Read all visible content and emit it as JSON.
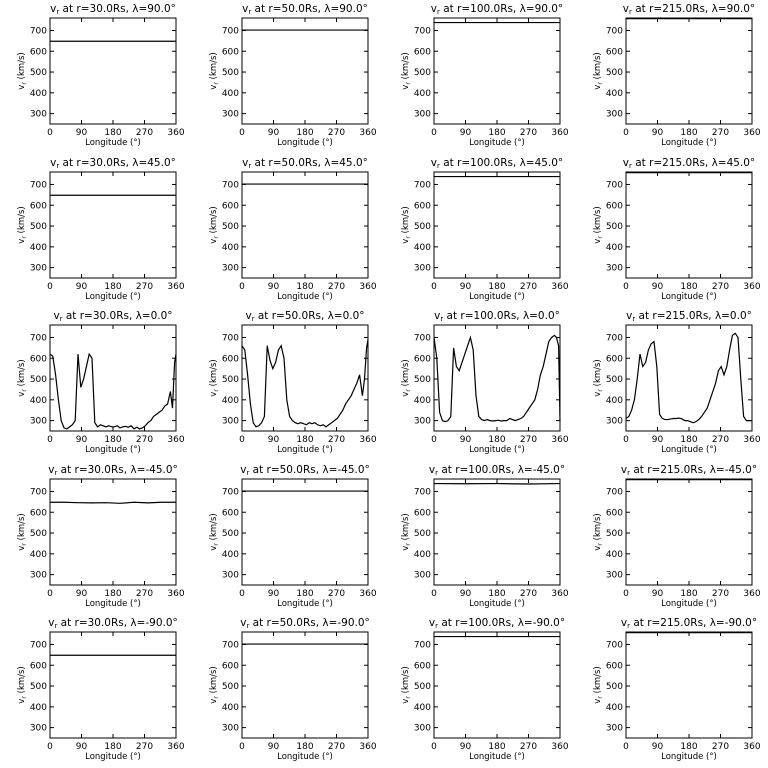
{
  "chart_data": [
    {
      "type": "line",
      "title": "v_r at r=30.0Rs, λ=90.0°",
      "radius": "30.0",
      "lat": "90.0",
      "xlabel": "Longitude (°)",
      "ylabel": "v_r (km/s)",
      "xlim": [
        0,
        360
      ],
      "ylim": [
        250,
        760
      ],
      "xticks": [
        0,
        90,
        180,
        270,
        360
      ],
      "yticks": [
        300,
        400,
        500,
        600,
        700
      ],
      "x": [
        0,
        360
      ],
      "y": [
        648,
        648
      ]
    },
    {
      "type": "line",
      "title": "v_r at r=50.0Rs, λ=90.0°",
      "radius": "50.0",
      "lat": "90.0",
      "xlabel": "Longitude (°)",
      "ylabel": "v_r (km/s)",
      "xlim": [
        0,
        360
      ],
      "ylim": [
        250,
        760
      ],
      "xticks": [
        0,
        90,
        180,
        270,
        360
      ],
      "yticks": [
        300,
        400,
        500,
        600,
        700
      ],
      "x": [
        0,
        360
      ],
      "y": [
        702,
        702
      ]
    },
    {
      "type": "line",
      "title": "v_r at r=100.0Rs, λ=90.0°",
      "radius": "100.0",
      "lat": "90.0",
      "xlabel": "Longitude (°)",
      "ylabel": "v_r (km/s)",
      "xlim": [
        0,
        360
      ],
      "ylim": [
        250,
        760
      ],
      "xticks": [
        0,
        90,
        180,
        270,
        360
      ],
      "yticks": [
        300,
        400,
        500,
        600,
        700
      ],
      "x": [
        0,
        360
      ],
      "y": [
        738,
        738
      ]
    },
    {
      "type": "line",
      "title": "v_r at r=215.0Rs, λ=90.0°",
      "radius": "215.0",
      "lat": "90.0",
      "xlabel": "Longitude (°)",
      "ylabel": "v_r (km/s)",
      "xlim": [
        0,
        360
      ],
      "ylim": [
        250,
        760
      ],
      "xticks": [
        0,
        90,
        180,
        270,
        360
      ],
      "yticks": [
        300,
        400,
        500,
        600,
        700
      ],
      "x": [
        0,
        360
      ],
      "y": [
        757,
        757
      ]
    },
    {
      "type": "line",
      "title": "v_r at r=30.0Rs, λ=45.0°",
      "radius": "30.0",
      "lat": "45.0",
      "xlabel": "Longitude (°)",
      "ylabel": "v_r (km/s)",
      "xlim": [
        0,
        360
      ],
      "ylim": [
        250,
        760
      ],
      "xticks": [
        0,
        90,
        180,
        270,
        360
      ],
      "yticks": [
        300,
        400,
        500,
        600,
        700
      ],
      "x": [
        0,
        360
      ],
      "y": [
        648,
        648
      ]
    },
    {
      "type": "line",
      "title": "v_r at r=50.0Rs, λ=45.0°",
      "radius": "50.0",
      "lat": "45.0",
      "xlabel": "Longitude (°)",
      "ylabel": "v_r (km/s)",
      "xlim": [
        0,
        360
      ],
      "ylim": [
        250,
        760
      ],
      "xticks": [
        0,
        90,
        180,
        270,
        360
      ],
      "yticks": [
        300,
        400,
        500,
        600,
        700
      ],
      "x": [
        0,
        360
      ],
      "y": [
        702,
        702
      ]
    },
    {
      "type": "line",
      "title": "v_r at r=100.0Rs, λ=45.0°",
      "radius": "100.0",
      "lat": "45.0",
      "xlabel": "Longitude (°)",
      "ylabel": "v_r (km/s)",
      "xlim": [
        0,
        360
      ],
      "ylim": [
        250,
        760
      ],
      "xticks": [
        0,
        90,
        180,
        270,
        360
      ],
      "yticks": [
        300,
        400,
        500,
        600,
        700
      ],
      "x": [
        0,
        360
      ],
      "y": [
        738,
        738
      ]
    },
    {
      "type": "line",
      "title": "v_r at r=215.0Rs, λ=45.0°",
      "radius": "215.0",
      "lat": "45.0",
      "xlabel": "Longitude (°)",
      "ylabel": "v_r (km/s)",
      "xlim": [
        0,
        360
      ],
      "ylim": [
        250,
        760
      ],
      "xticks": [
        0,
        90,
        180,
        270,
        360
      ],
      "yticks": [
        300,
        400,
        500,
        600,
        700
      ],
      "x": [
        0,
        360
      ],
      "y": [
        757,
        757
      ]
    },
    {
      "type": "line",
      "title": "v_r at r=30.0Rs, λ=0.0°",
      "radius": "30.0",
      "lat": "0.0",
      "xlabel": "Longitude (°)",
      "ylabel": "v_r (km/s)",
      "xlim": [
        0,
        360
      ],
      "ylim": [
        250,
        760
      ],
      "xticks": [
        0,
        90,
        180,
        270,
        360
      ],
      "yticks": [
        300,
        400,
        500,
        600,
        700
      ],
      "x": [
        0,
        8,
        16,
        24,
        32,
        40,
        48,
        56,
        64,
        72,
        80,
        88,
        96,
        104,
        112,
        120,
        128,
        136,
        144,
        152,
        160,
        168,
        176,
        184,
        192,
        200,
        208,
        216,
        224,
        232,
        240,
        248,
        256,
        264,
        272,
        280,
        288,
        296,
        304,
        312,
        320,
        328,
        336,
        344,
        350,
        356,
        360
      ],
      "y": [
        620,
        610,
        520,
        400,
        300,
        265,
        260,
        270,
        280,
        300,
        620,
        460,
        500,
        560,
        620,
        600,
        290,
        270,
        280,
        275,
        270,
        275,
        270,
        270,
        275,
        265,
        270,
        272,
        268,
        275,
        260,
        268,
        260,
        265,
        275,
        290,
        300,
        320,
        330,
        340,
        350,
        370,
        380,
        440,
        360,
        580,
        620
      ]
    },
    {
      "type": "line",
      "title": "v_r at r=50.0Rs, λ=0.0°",
      "radius": "50.0",
      "lat": "0.0",
      "xlabel": "Longitude (°)",
      "ylabel": "v_r (km/s)",
      "xlim": [
        0,
        360
      ],
      "ylim": [
        250,
        760
      ],
      "xticks": [
        0,
        90,
        180,
        270,
        360
      ],
      "yticks": [
        300,
        400,
        500,
        600,
        700
      ],
      "x": [
        0,
        8,
        16,
        24,
        32,
        40,
        48,
        56,
        64,
        72,
        80,
        88,
        96,
        104,
        112,
        120,
        128,
        136,
        144,
        152,
        160,
        168,
        176,
        184,
        192,
        200,
        208,
        216,
        224,
        232,
        240,
        248,
        256,
        264,
        272,
        280,
        288,
        296,
        304,
        312,
        320,
        328,
        336,
        344,
        350,
        356,
        360
      ],
      "y": [
        660,
        640,
        520,
        380,
        290,
        270,
        275,
        290,
        320,
        660,
        590,
        550,
        580,
        640,
        660,
        600,
        400,
        320,
        300,
        290,
        285,
        290,
        285,
        280,
        290,
        285,
        290,
        280,
        275,
        280,
        270,
        280,
        290,
        300,
        310,
        330,
        350,
        380,
        400,
        420,
        450,
        480,
        520,
        420,
        500,
        650,
        690
      ]
    },
    {
      "type": "line",
      "title": "v_r at r=100.0Rs, λ=0.0°",
      "radius": "100.0",
      "lat": "0.0",
      "xlabel": "Longitude (°)",
      "ylabel": "v_r (km/s)",
      "xlim": [
        0,
        360
      ],
      "ylim": [
        250,
        760
      ],
      "xticks": [
        0,
        90,
        180,
        270,
        360
      ],
      "yticks": [
        300,
        400,
        500,
        600,
        700
      ],
      "x": [
        0,
        8,
        16,
        24,
        32,
        40,
        48,
        56,
        64,
        72,
        80,
        88,
        96,
        104,
        112,
        120,
        128,
        136,
        144,
        152,
        160,
        168,
        176,
        184,
        192,
        200,
        208,
        216,
        224,
        232,
        240,
        248,
        256,
        264,
        272,
        280,
        288,
        296,
        304,
        312,
        320,
        328,
        336,
        344,
        350,
        356,
        360
      ],
      "y": [
        700,
        600,
        340,
        300,
        295,
        300,
        320,
        650,
        560,
        540,
        580,
        620,
        660,
        700,
        640,
        420,
        320,
        305,
        300,
        305,
        300,
        298,
        300,
        302,
        298,
        300,
        300,
        310,
        305,
        300,
        305,
        310,
        320,
        340,
        360,
        380,
        400,
        450,
        520,
        560,
        620,
        680,
        700,
        710,
        700,
        660,
        300
      ]
    },
    {
      "type": "line",
      "title": "v_r at r=215.0Rs, λ=0.0°",
      "radius": "215.0",
      "lat": "0.0",
      "xlabel": "Longitude (°)",
      "ylabel": "v_r (km/s)",
      "xlim": [
        0,
        360
      ],
      "ylim": [
        250,
        760
      ],
      "xticks": [
        0,
        90,
        180,
        270,
        360
      ],
      "yticks": [
        300,
        400,
        500,
        600,
        700
      ],
      "x": [
        0,
        8,
        16,
        24,
        32,
        40,
        48,
        56,
        64,
        72,
        80,
        88,
        96,
        104,
        112,
        120,
        128,
        136,
        144,
        152,
        160,
        168,
        176,
        184,
        192,
        200,
        208,
        216,
        224,
        232,
        240,
        248,
        256,
        264,
        272,
        280,
        288,
        296,
        304,
        312,
        320,
        328,
        336,
        344,
        350,
        356,
        360
      ],
      "y": [
        310,
        320,
        350,
        400,
        500,
        620,
        560,
        580,
        640,
        670,
        680,
        560,
        330,
        310,
        305,
        305,
        308,
        310,
        310,
        312,
        308,
        300,
        300,
        295,
        290,
        295,
        305,
        320,
        340,
        360,
        400,
        440,
        480,
        540,
        560,
        520,
        560,
        640,
        710,
        720,
        700,
        500,
        320,
        300,
        300,
        300,
        300
      ]
    },
    {
      "type": "line",
      "title": "v_r at r=30.0Rs, λ=-45.0°",
      "radius": "30.0",
      "lat": "-45.0",
      "xlabel": "Longitude (°)",
      "ylabel": "v_r (km/s)",
      "xlim": [
        0,
        360
      ],
      "ylim": [
        250,
        760
      ],
      "xticks": [
        0,
        90,
        180,
        270,
        360
      ],
      "yticks": [
        300,
        400,
        500,
        600,
        700
      ],
      "x": [
        0,
        40,
        80,
        120,
        160,
        200,
        240,
        280,
        320,
        360
      ],
      "y": [
        648,
        648,
        646,
        645,
        646,
        643,
        648,
        645,
        648,
        648
      ]
    },
    {
      "type": "line",
      "title": "v_r at r=50.0Rs, λ=-45.0°",
      "radius": "50.0",
      "lat": "-45.0",
      "xlabel": "Longitude (°)",
      "ylabel": "v_r (km/s)",
      "xlim": [
        0,
        360
      ],
      "ylim": [
        250,
        760
      ],
      "xticks": [
        0,
        90,
        180,
        270,
        360
      ],
      "yticks": [
        300,
        400,
        500,
        600,
        700
      ],
      "x": [
        0,
        360
      ],
      "y": [
        702,
        702
      ]
    },
    {
      "type": "line",
      "title": "v_r at r=100.0Rs, λ=-45.0°",
      "radius": "100.0",
      "lat": "-45.0",
      "xlabel": "Longitude (°)",
      "ylabel": "v_r (km/s)",
      "xlim": [
        0,
        360
      ],
      "ylim": [
        250,
        760
      ],
      "xticks": [
        0,
        90,
        180,
        270,
        360
      ],
      "yticks": [
        300,
        400,
        500,
        600,
        700
      ],
      "x": [
        0,
        90,
        180,
        270,
        360
      ],
      "y": [
        738,
        737,
        738,
        736,
        738
      ]
    },
    {
      "type": "line",
      "title": "v_r at r=215.0Rs, λ=-45.0°",
      "radius": "215.0",
      "lat": "-45.0",
      "xlabel": "Longitude (°)",
      "ylabel": "v_r (km/s)",
      "xlim": [
        0,
        360
      ],
      "ylim": [
        250,
        760
      ],
      "xticks": [
        0,
        90,
        180,
        270,
        360
      ],
      "yticks": [
        300,
        400,
        500,
        600,
        700
      ],
      "x": [
        0,
        360
      ],
      "y": [
        757,
        757
      ]
    },
    {
      "type": "line",
      "title": "v_r at r=30.0Rs, λ=-90.0°",
      "radius": "30.0",
      "lat": "-90.0",
      "xlabel": "Longitude (°)",
      "ylabel": "v_r (km/s)",
      "xlim": [
        0,
        360
      ],
      "ylim": [
        250,
        760
      ],
      "xticks": [
        0,
        90,
        180,
        270,
        360
      ],
      "yticks": [
        300,
        400,
        500,
        600,
        700
      ],
      "x": [
        0,
        360
      ],
      "y": [
        648,
        648
      ]
    },
    {
      "type": "line",
      "title": "v_r at r=50.0Rs, λ=-90.0°",
      "radius": "50.0",
      "lat": "-90.0",
      "xlabel": "Longitude (°)",
      "ylabel": "v_r (km/s)",
      "xlim": [
        0,
        360
      ],
      "ylim": [
        250,
        760
      ],
      "xticks": [
        0,
        90,
        180,
        270,
        360
      ],
      "yticks": [
        300,
        400,
        500,
        600,
        700
      ],
      "x": [
        0,
        360
      ],
      "y": [
        702,
        702
      ]
    },
    {
      "type": "line",
      "title": "v_r at r=100.0Rs, λ=-90.0°",
      "radius": "100.0",
      "lat": "-90.0",
      "xlabel": "Longitude (°)",
      "ylabel": "v_r (km/s)",
      "xlim": [
        0,
        360
      ],
      "ylim": [
        250,
        760
      ],
      "xticks": [
        0,
        90,
        180,
        270,
        360
      ],
      "yticks": [
        300,
        400,
        500,
        600,
        700
      ],
      "x": [
        0,
        360
      ],
      "y": [
        738,
        738
      ]
    },
    {
      "type": "line",
      "title": "v_r at r=215.0Rs, λ=-90.0°",
      "radius": "215.0",
      "lat": "-90.0",
      "xlabel": "Longitude (°)",
      "ylabel": "v_r (km/s)",
      "xlim": [
        0,
        360
      ],
      "ylim": [
        250,
        760
      ],
      "xticks": [
        0,
        90,
        180,
        270,
        360
      ],
      "yticks": [
        300,
        400,
        500,
        600,
        700
      ],
      "x": [
        0,
        360
      ],
      "y": [
        757,
        757
      ]
    }
  ]
}
